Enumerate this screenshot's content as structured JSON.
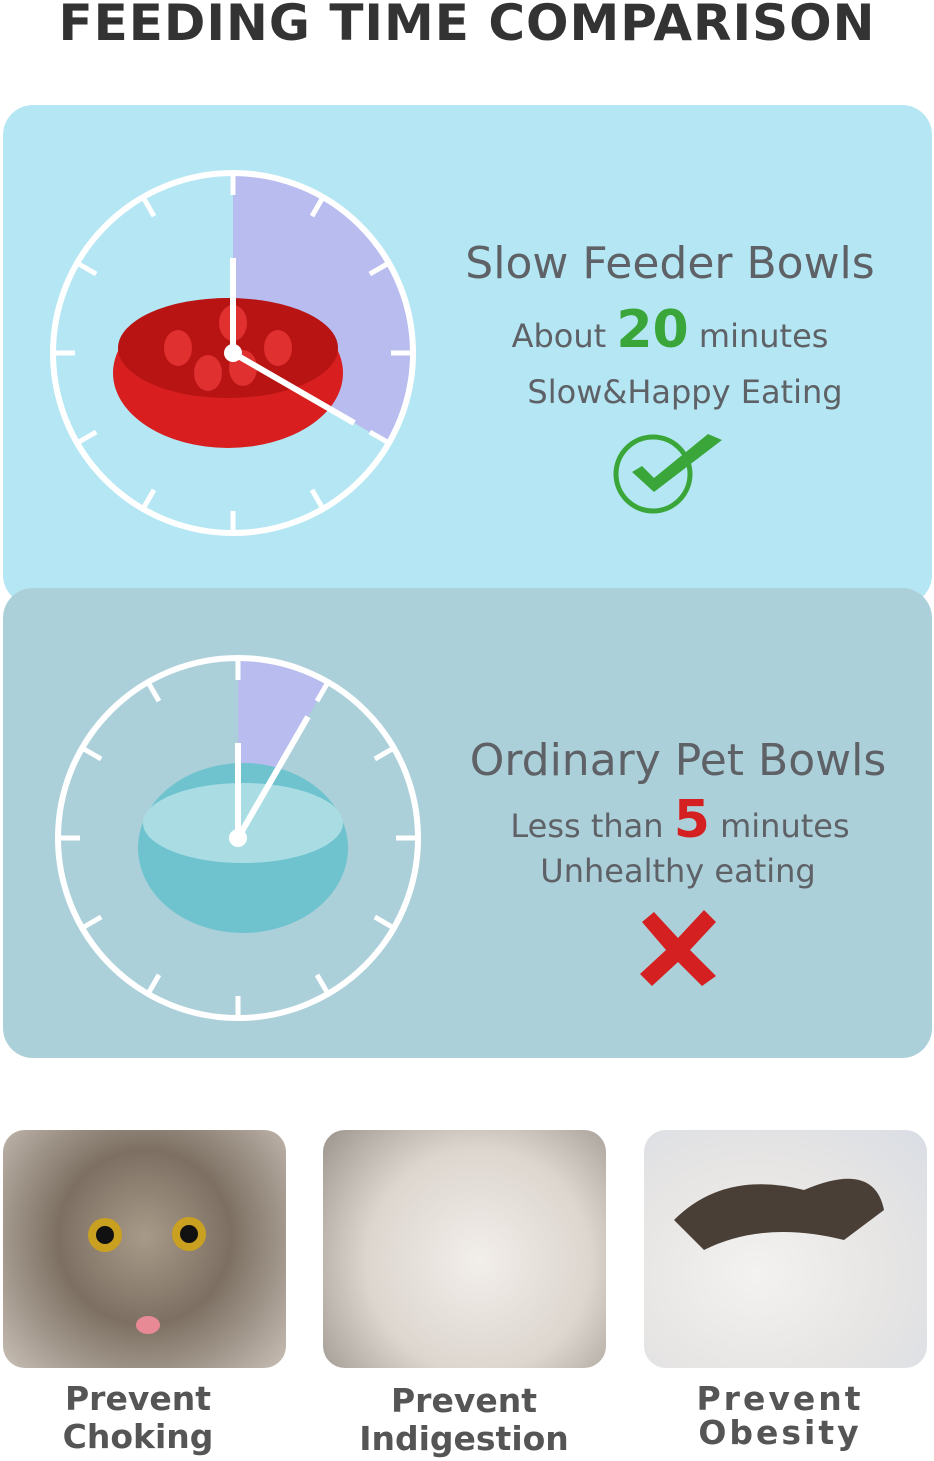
{
  "title": "FEEDING TIME COMPARISON",
  "slow": {
    "heading": "Slow Feeder Bowls",
    "prefix": "About",
    "number": "20",
    "suffix": "minutes",
    "caption": "Slow&Happy Eating",
    "icon": "check-icon",
    "number_color": "#3aa63a"
  },
  "ordinary": {
    "heading": "Ordinary Pet Bowls",
    "prefix": "Less than",
    "number": "5",
    "suffix": "minutes",
    "caption": "Unhealthy eating",
    "icon": "cross-icon",
    "number_color": "#d42020"
  },
  "benefits": [
    {
      "line1": "Prevent",
      "line2": "Choking"
    },
    {
      "line1": "Prevent",
      "line2": "Indigestion"
    },
    {
      "line1": "Prevent",
      "line2": "Obesity"
    }
  ],
  "colors": {
    "panel_top": "#b4e7f3",
    "panel_bottom": "#acd0da",
    "wedge": "#b9bcef"
  }
}
